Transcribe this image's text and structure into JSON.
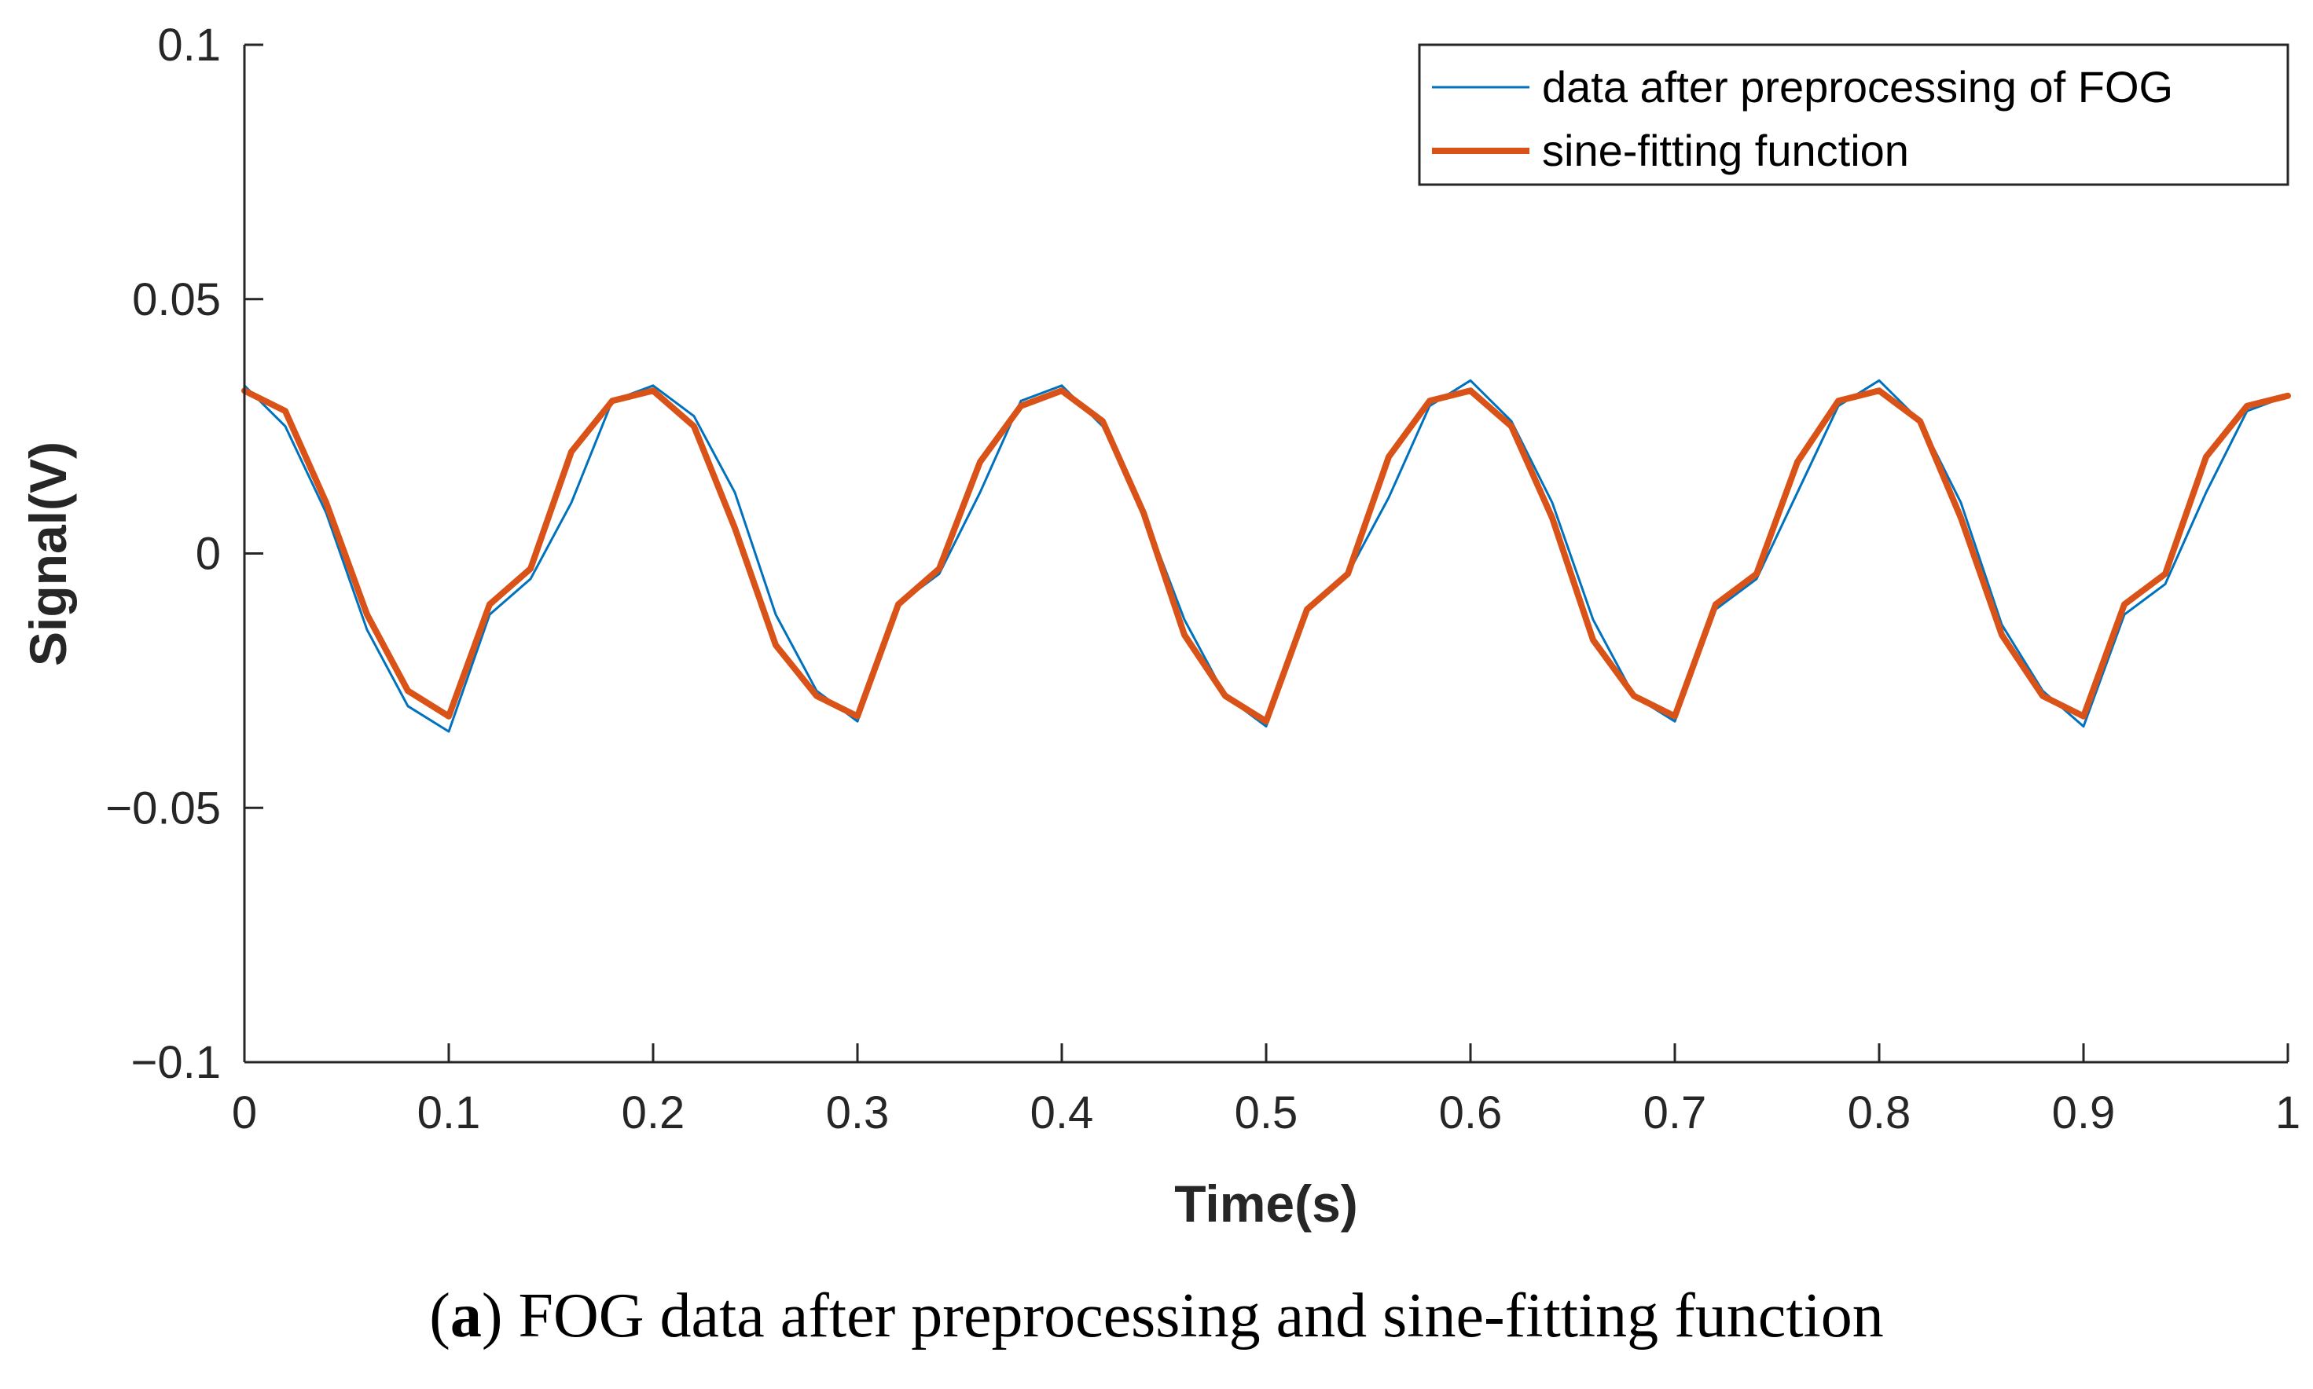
{
  "chart_data": {
    "type": "line",
    "title": "",
    "xlabel": "Time(s)",
    "ylabel": "Signal(V)",
    "xlim": [
      0,
      1
    ],
    "ylim": [
      -0.1,
      0.1
    ],
    "x_ticks": [
      0,
      0.1,
      0.2,
      0.3,
      0.4,
      0.5,
      0.6,
      0.7,
      0.8,
      0.9,
      1
    ],
    "x_tick_labels": [
      "0",
      "0.1",
      "0.2",
      "0.3",
      "0.4",
      "0.5",
      "0.6",
      "0.7",
      "0.8",
      "0.9",
      "1"
    ],
    "y_ticks": [
      -0.1,
      -0.05,
      0,
      0.05,
      0.1
    ],
    "y_tick_labels": [
      "−0.1",
      "−0.05",
      "0",
      "0.05",
      "0.1"
    ],
    "grid": false,
    "legend_position": "top-right",
    "series": [
      {
        "name": "data after preprocessing of FOG",
        "color": "#0072BD",
        "style": "thin noisy line",
        "x": [
          0,
          0.02,
          0.04,
          0.06,
          0.08,
          0.1,
          0.12,
          0.14,
          0.16,
          0.18,
          0.2,
          0.22,
          0.24,
          0.26,
          0.28,
          0.3,
          0.32,
          0.34,
          0.36,
          0.38,
          0.4,
          0.42,
          0.44,
          0.46,
          0.48,
          0.5,
          0.52,
          0.54,
          0.56,
          0.58,
          0.6,
          0.62,
          0.64,
          0.66,
          0.68,
          0.7,
          0.72,
          0.74,
          0.76,
          0.78,
          0.8,
          0.82,
          0.84,
          0.86,
          0.88,
          0.9,
          0.92,
          0.94,
          0.96,
          0.98,
          1
        ],
        "values": [
          0.033,
          0.025,
          0.008,
          -0.015,
          -0.03,
          -0.035,
          -0.012,
          -0.005,
          0.01,
          0.03,
          0.033,
          0.027,
          0.012,
          -0.012,
          -0.027,
          -0.033,
          -0.01,
          -0.004,
          0.012,
          0.03,
          0.033,
          0.025,
          0.008,
          -0.013,
          -0.028,
          -0.034,
          -0.011,
          -0.004,
          0.011,
          0.029,
          0.034,
          0.026,
          0.01,
          -0.013,
          -0.028,
          -0.033,
          -0.011,
          -0.005,
          0.012,
          0.029,
          0.034,
          0.026,
          0.01,
          -0.014,
          -0.027,
          -0.034,
          -0.012,
          -0.006,
          0.012,
          0.028,
          0.031
        ]
      },
      {
        "name": "sine-fitting function",
        "color": "#D95319",
        "style": "thick smooth line",
        "x": [
          0,
          0.02,
          0.04,
          0.06,
          0.08,
          0.1,
          0.12,
          0.14,
          0.16,
          0.18,
          0.2,
          0.22,
          0.24,
          0.26,
          0.28,
          0.3,
          0.32,
          0.34,
          0.36,
          0.38,
          0.4,
          0.42,
          0.44,
          0.46,
          0.48,
          0.5,
          0.52,
          0.54,
          0.56,
          0.58,
          0.6,
          0.62,
          0.64,
          0.66,
          0.68,
          0.7,
          0.72,
          0.74,
          0.76,
          0.78,
          0.8,
          0.82,
          0.84,
          0.86,
          0.88,
          0.9,
          0.92,
          0.94,
          0.96,
          0.98,
          1
        ],
        "values": [
          0.032,
          0.028,
          0.01,
          -0.012,
          -0.027,
          -0.032,
          -0.01,
          -0.003,
          0.02,
          0.03,
          0.032,
          0.025,
          0.005,
          -0.018,
          -0.028,
          -0.032,
          -0.01,
          -0.003,
          0.018,
          0.029,
          0.032,
          0.026,
          0.008,
          -0.016,
          -0.028,
          -0.033,
          -0.011,
          -0.004,
          0.019,
          0.03,
          0.032,
          0.025,
          0.007,
          -0.017,
          -0.028,
          -0.032,
          -0.01,
          -0.004,
          0.018,
          0.03,
          0.032,
          0.026,
          0.007,
          -0.016,
          -0.028,
          -0.032,
          -0.01,
          -0.004,
          0.019,
          0.029,
          0.031
        ]
      }
    ]
  },
  "caption": {
    "label": "a",
    "text": "FOG data after preprocessing and sine-fitting function"
  }
}
